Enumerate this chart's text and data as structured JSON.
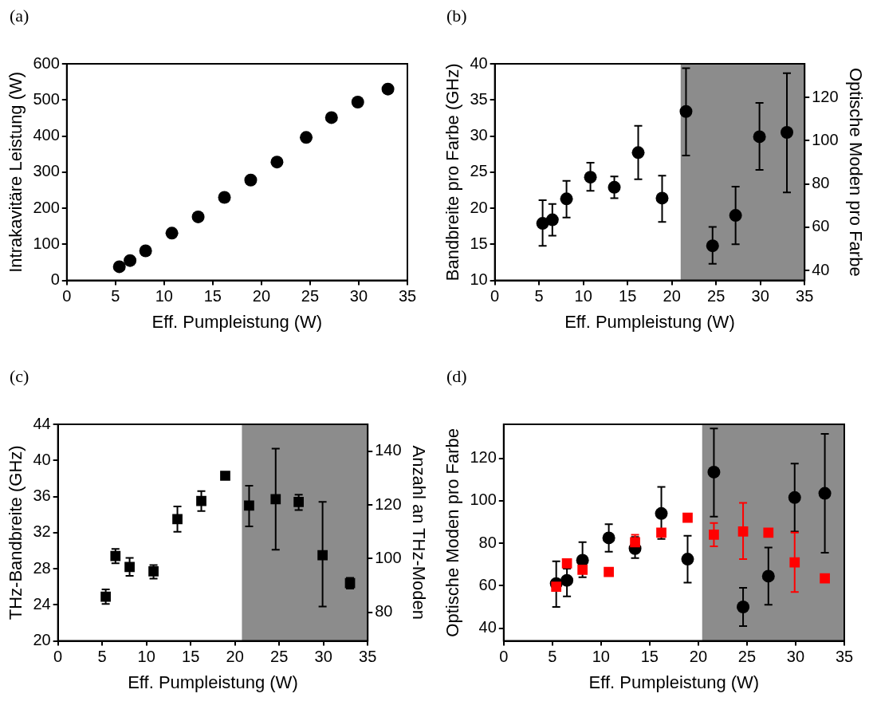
{
  "chart_data": [
    {
      "type": "scatter",
      "annotations": [
        "(a)"
      ],
      "xlabel": "Eff. Pumpleistung (W)",
      "ylabel": "Intrakavitäre Leistung (W)",
      "xlim": [
        0,
        35
      ],
      "xticks": [
        0,
        5,
        10,
        15,
        20,
        25,
        30,
        35
      ],
      "ylim": [
        0,
        600
      ],
      "yticks": [
        0,
        100,
        200,
        300,
        400,
        500,
        600
      ],
      "marker": "circle",
      "x": [
        5.4,
        6.5,
        8.1,
        10.8,
        13.5,
        16.2,
        18.9,
        21.6,
        24.6,
        27.2,
        29.9,
        33.0
      ],
      "series": [
        {
          "color": "#000000",
          "values": [
            38,
            55,
            82,
            131,
            176,
            230,
            278,
            328,
            396,
            451,
            494,
            530
          ]
        }
      ]
    },
    {
      "type": "scatter",
      "annotations": [
        "(b)"
      ],
      "xlabel": "Eff. Pumpleistung (W)",
      "ylabel": "Bandbreite pro Farbe (GHz)",
      "y2label": "Optische Moden pro Farbe",
      "xlim": [
        0,
        35
      ],
      "xticks": [
        0,
        5,
        10,
        15,
        20,
        25,
        30,
        35
      ],
      "ylim": [
        10,
        40
      ],
      "yticks": [
        10,
        15,
        20,
        25,
        30,
        35,
        40
      ],
      "y2lim": [
        35.4,
        135.6
      ],
      "y2ticks": [
        40,
        60,
        80,
        100,
        120
      ],
      "marker": "circle",
      "bands": [
        {
          "axis": "x",
          "from": 21,
          "to": 35,
          "color": "#000000"
        }
      ],
      "x": [
        5.4,
        6.5,
        8.1,
        10.8,
        13.5,
        16.2,
        18.9,
        21.6,
        24.6,
        27.2,
        29.9,
        33.0
      ],
      "series": [
        {
          "color": "#000000",
          "values": [
            17.9,
            18.4,
            21.3,
            24.3,
            22.9,
            27.7,
            21.4,
            33.4,
            14.8,
            19.0,
            29.9,
            30.5
          ],
          "errors": [
            [
              14.8,
              21.1
            ],
            [
              16.2,
              20.6
            ],
            [
              18.7,
              23.8
            ],
            [
              22.4,
              26.3
            ],
            [
              21.4,
              24.4
            ],
            [
              24.0,
              31.4
            ],
            [
              18.1,
              24.5
            ],
            [
              27.3,
              39.4
            ],
            [
              12.3,
              17.4
            ],
            [
              15.0,
              23.0
            ],
            [
              25.3,
              34.6
            ],
            [
              22.2,
              38.7
            ]
          ]
        }
      ]
    },
    {
      "type": "scatter",
      "annotations": [
        "(c)"
      ],
      "xlabel": "Eff. Pumpleistung (W)",
      "ylabel": "THz-Bandbreite (GHz)",
      "y2label": "Anzahl an THz-Moden",
      "xlim": [
        0,
        35
      ],
      "xticks": [
        0,
        5,
        10,
        15,
        20,
        25,
        30,
        35
      ],
      "ylim": [
        20,
        44
      ],
      "yticks": [
        20,
        24,
        28,
        32,
        36,
        40,
        44
      ],
      "y2lim": [
        69.3,
        150.1
      ],
      "y2ticks": [
        80,
        100,
        120,
        140
      ],
      "marker": "square",
      "bands": [
        {
          "axis": "x",
          "from": 20.8,
          "to": 35,
          "color": "#000000"
        }
      ],
      "x": [
        5.4,
        6.5,
        8.1,
        10.8,
        13.5,
        16.2,
        18.9,
        21.6,
        24.6,
        27.2,
        29.9,
        33.0
      ],
      "series": [
        {
          "color": "#000000",
          "values": [
            24.9,
            29.4,
            28.2,
            27.7,
            33.5,
            35.5,
            38.3,
            35.0,
            35.7,
            35.4,
            29.5,
            26.4
          ],
          "errors": [
            [
              24.1,
              25.7
            ],
            [
              28.6,
              30.2
            ],
            [
              27.2,
              29.2
            ],
            [
              26.9,
              28.4
            ],
            [
              32.1,
              34.9
            ],
            [
              34.4,
              36.6
            ],
            null,
            [
              32.7,
              37.2
            ],
            [
              30.1,
              41.3
            ],
            [
              34.5,
              36.2
            ],
            [
              23.8,
              35.4
            ],
            [
              25.8,
              27.0
            ]
          ]
        }
      ]
    },
    {
      "type": "scatter",
      "annotations": [
        "(d)"
      ],
      "xlabel": "Eff. Pumpleistung (W)",
      "ylabel": "Optische Moden pro Farbe",
      "xlim": [
        0,
        35
      ],
      "xticks": [
        0,
        5,
        10,
        15,
        20,
        25,
        30,
        35
      ],
      "ylim": [
        34,
        136
      ],
      "yticks": [
        40,
        60,
        80,
        100,
        120
      ],
      "bands": [
        {
          "axis": "x",
          "from": 20.4,
          "to": 35,
          "color": "#000000"
        }
      ],
      "x": [
        5.4,
        6.5,
        8.1,
        10.8,
        13.5,
        16.2,
        18.9,
        21.6,
        24.6,
        27.2,
        29.9,
        33.0
      ],
      "series": [
        {
          "color": "#000000",
          "marker": "circle",
          "values": [
            61,
            62.5,
            72,
            82.5,
            77.5,
            94,
            72.5,
            113.5,
            50,
            64.5,
            101.5,
            103.5
          ],
          "errors": [
            [
              50,
              71.5
            ],
            [
              55,
              68
            ],
            [
              64,
              80.5
            ],
            [
              76,
              89
            ],
            [
              73,
              83
            ],
            [
              82,
              106.5
            ],
            [
              61.5,
              83.5
            ],
            [
              92.5,
              134
            ],
            [
              41,
              59
            ],
            [
              51,
              78
            ],
            [
              85.5,
              117.5
            ],
            [
              75.5,
              131.5
            ]
          ]
        },
        {
          "color": "#ff0000",
          "marker": "square",
          "values": [
            59.5,
            70.5,
            67.5,
            66.5,
            80.5,
            85,
            92,
            84,
            85.5,
            85,
            71,
            63.5
          ],
          "errors": [
            null,
            null,
            null,
            null,
            [
              80.5,
              84
            ],
            null,
            null,
            [
              78.5,
              89.5
            ],
            [
              72.5,
              99
            ],
            null,
            [
              57,
              85
            ],
            null
          ]
        }
      ]
    }
  ]
}
